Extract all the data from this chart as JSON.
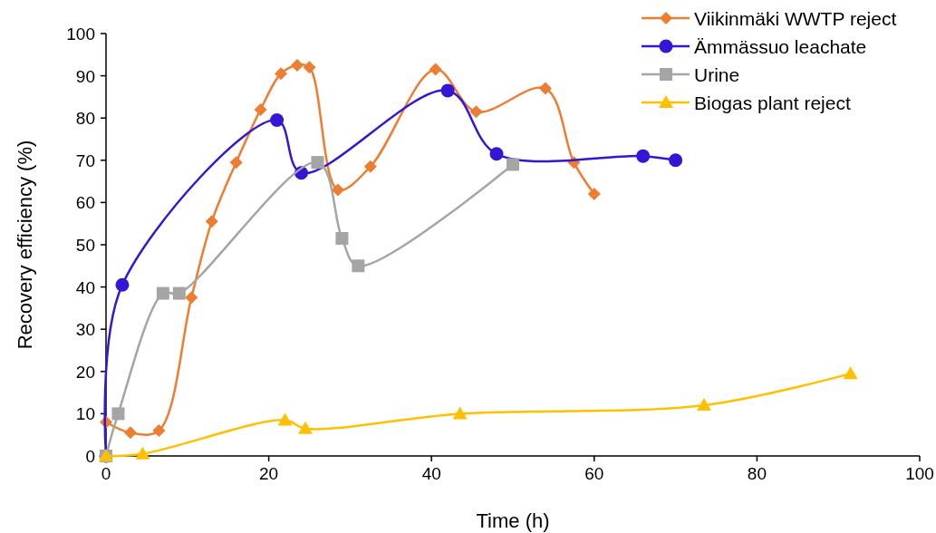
{
  "chart_data": {
    "type": "line",
    "xlabel": "Time (h)",
    "ylabel": "Recovery efficiency (%)",
    "xlim": [
      0,
      100
    ],
    "xticks": [
      0,
      20,
      40,
      60,
      80,
      100
    ],
    "ylim": [
      0,
      100
    ],
    "yticks": [
      0,
      10,
      20,
      30,
      40,
      50,
      60,
      70,
      80,
      90,
      100
    ],
    "grid": false,
    "legend": "top right",
    "series": [
      {
        "name": "Viikinmäki WWTP reject",
        "color": "#ed7d31",
        "marker": "diamond",
        "x": [
          0,
          3,
          6.5,
          10.5,
          13,
          16,
          19,
          21.5,
          23.5,
          25,
          28.5,
          32.5,
          40.5,
          45.5,
          54,
          57.5,
          60
        ],
        "values": [
          8,
          5.5,
          6,
          37.5,
          55.5,
          69.5,
          82,
          90.5,
          92.5,
          92,
          63,
          68.5,
          91.5,
          81.5,
          87,
          69.5,
          62
        ]
      },
      {
        "name": "Ämmässuo leachate",
        "color": "#3316d6",
        "marker": "circle",
        "x": [
          0,
          2,
          21,
          24,
          42,
          48,
          66,
          70
        ],
        "values": [
          0,
          40.5,
          79.5,
          67,
          86.5,
          71.5,
          71,
          70
        ]
      },
      {
        "name": "Urine",
        "color": "#a5a5a5",
        "marker": "square",
        "x": [
          0,
          1.5,
          7,
          9,
          26,
          29,
          31,
          50
        ],
        "values": [
          0,
          10,
          38.5,
          38.5,
          69.5,
          51.5,
          45,
          69
        ]
      },
      {
        "name": "Biogas plant reject",
        "color": "#ffc000",
        "marker": "triangle",
        "x": [
          0,
          4.5,
          22,
          24.5,
          43.5,
          73.5,
          91.5
        ],
        "values": [
          0,
          0.5,
          8.5,
          6.5,
          10,
          12,
          19.5
        ]
      }
    ]
  }
}
